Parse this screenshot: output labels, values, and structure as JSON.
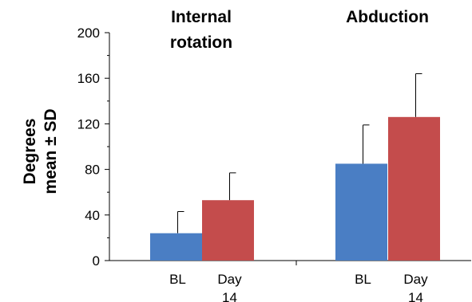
{
  "chart_data": {
    "type": "bar",
    "title": "",
    "ylabel_lines": [
      "Degrees",
      "mean ± SD"
    ],
    "ylim": [
      0,
      200
    ],
    "yticks": [
      "0",
      "40",
      "80",
      "120",
      "160",
      "200"
    ],
    "grid": false,
    "groups": [
      {
        "title_lines": [
          "Internal",
          "rotation"
        ],
        "bars": [
          {
            "label_lines": [
              "BL"
            ],
            "value": 24,
            "sd": 19
          },
          {
            "label_lines": [
              "Day",
              "14"
            ],
            "value": 53,
            "sd": 24
          }
        ]
      },
      {
        "title_lines": [
          "Abduction"
        ],
        "bars": [
          {
            "label_lines": [
              "BL"
            ],
            "value": 85,
            "sd": 34
          },
          {
            "label_lines": [
              "Day",
              "14"
            ],
            "value": 126,
            "sd": 38
          }
        ]
      }
    ],
    "colors": {
      "BL": "#4a7ec4",
      "Day 14": "#c44c4c"
    }
  }
}
